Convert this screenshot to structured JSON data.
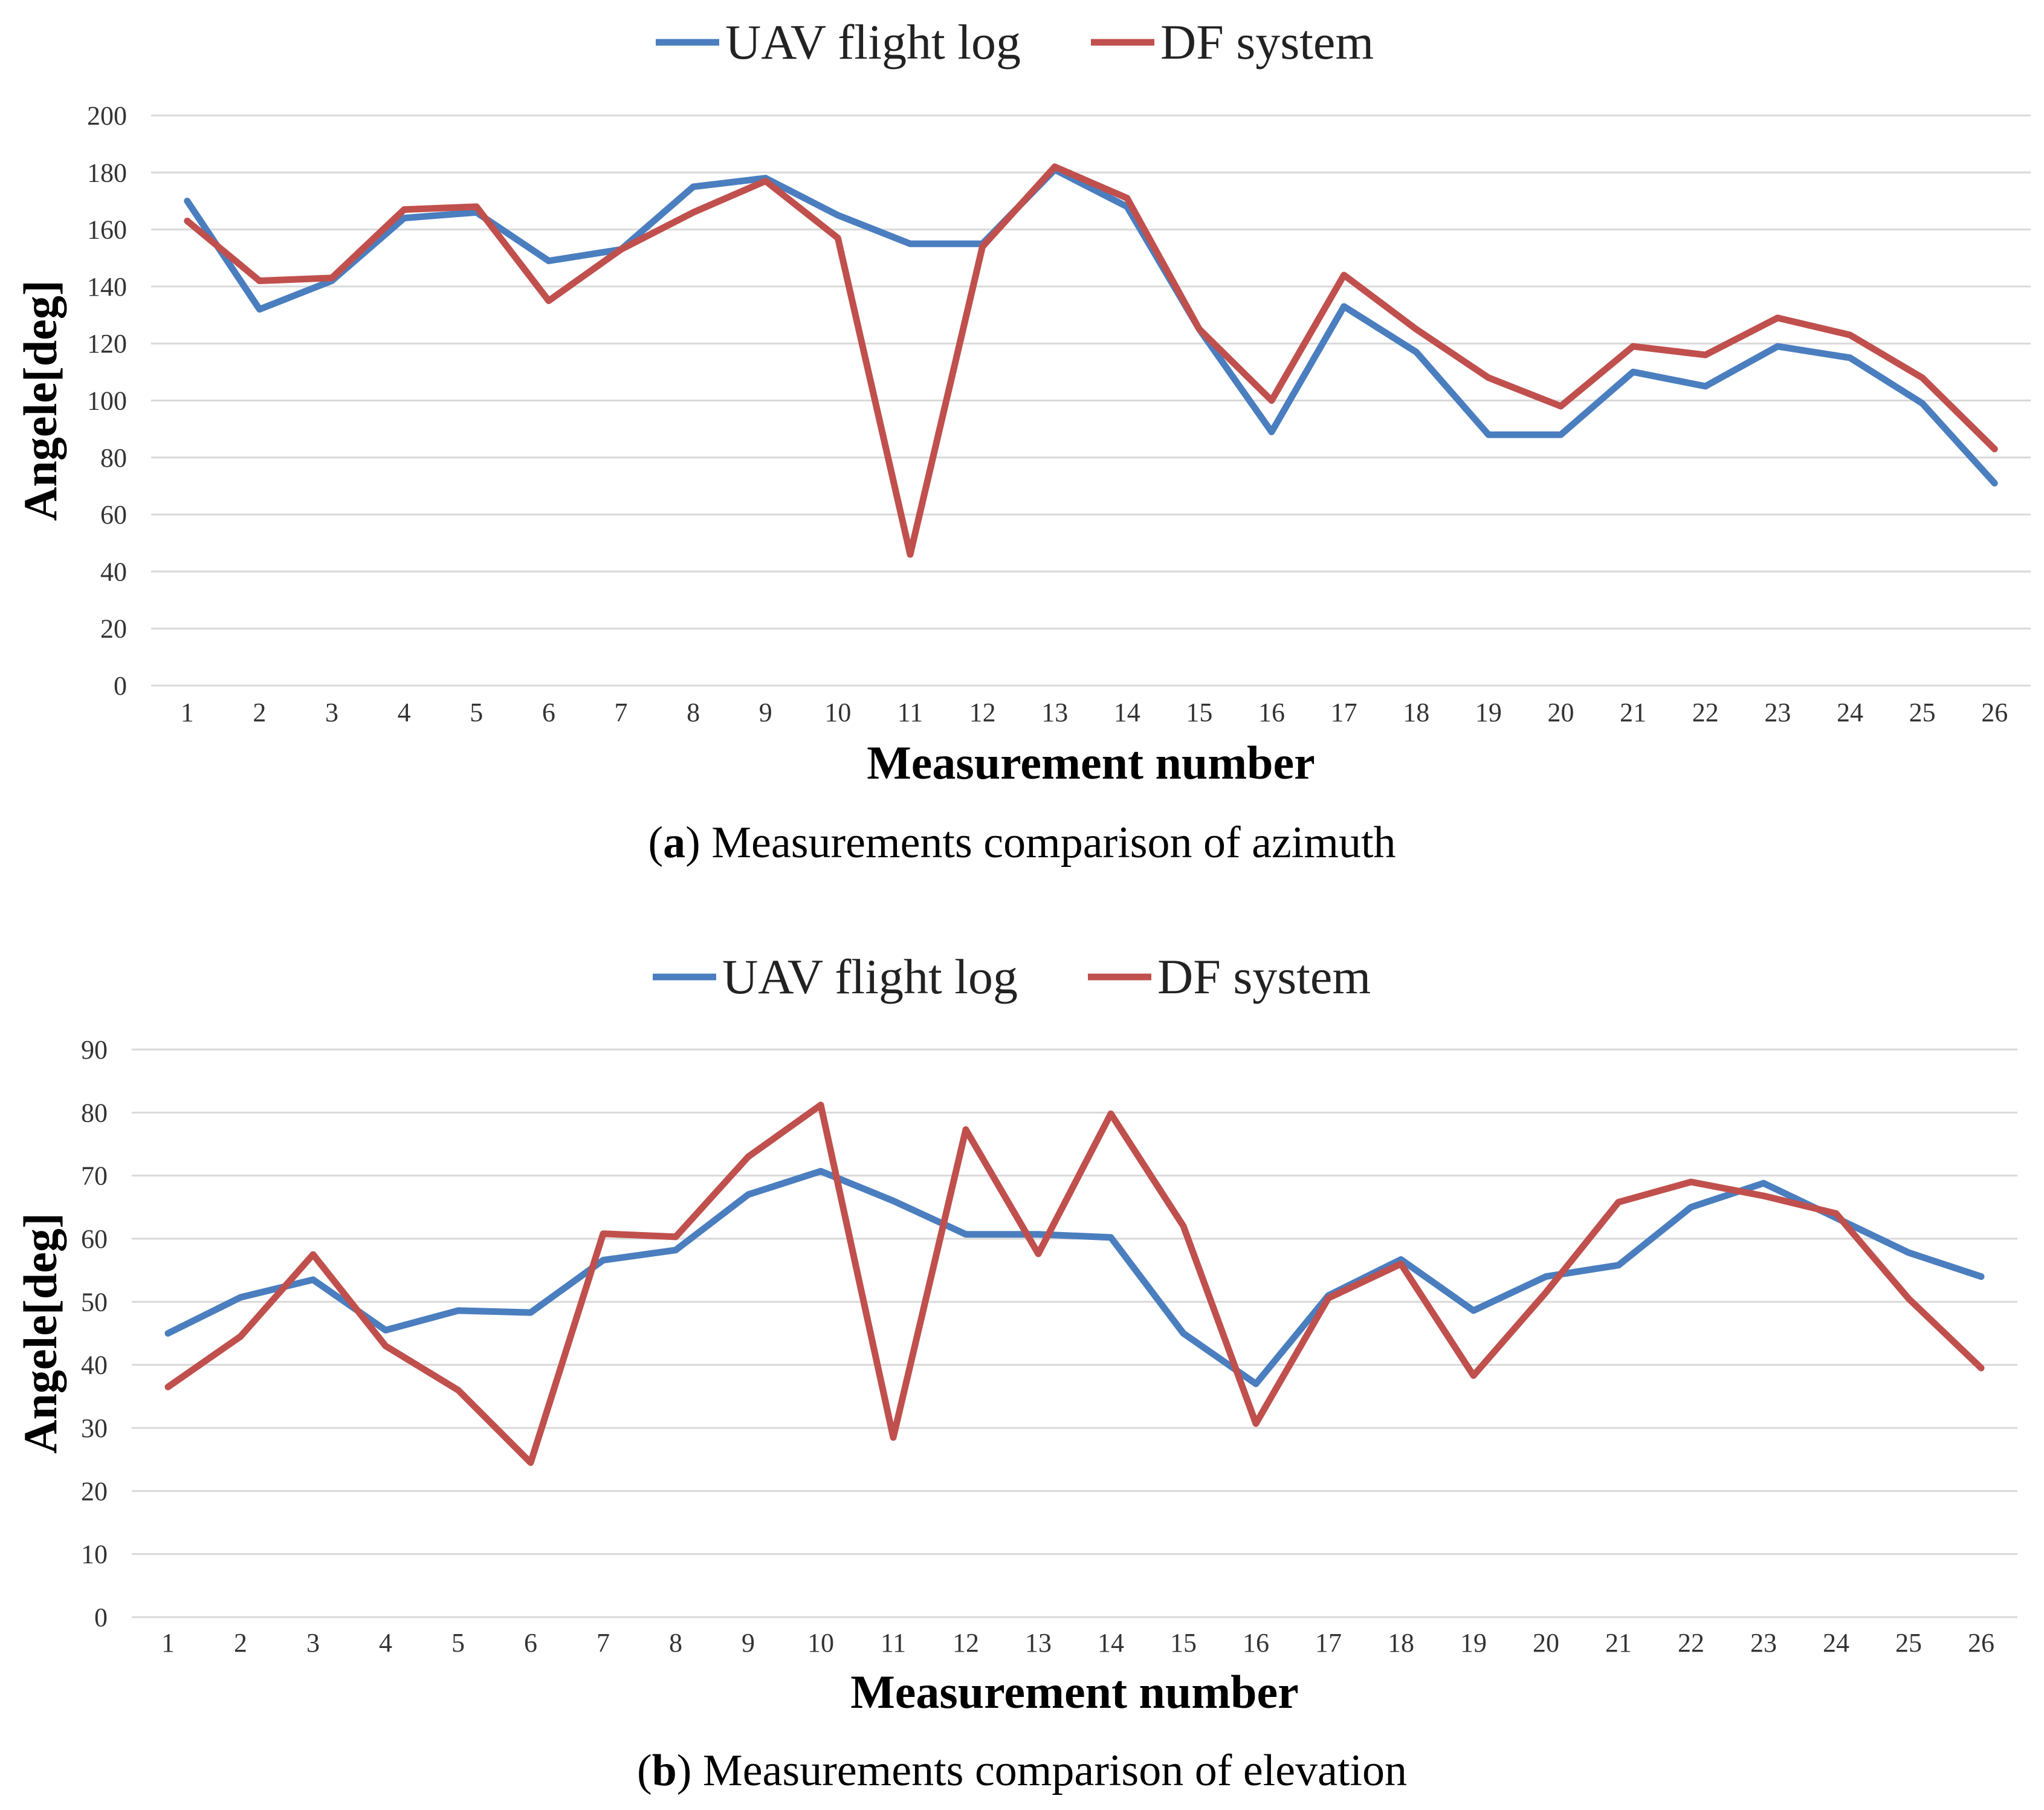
{
  "chart_data": [
    {
      "type": "line",
      "legend": [
        "UAV flight log",
        "DF system"
      ],
      "ylabel": "Angele[deg]",
      "xlabel": "Measurement number",
      "caption_label": "a",
      "caption_text": ") Measurements comparison of azimuth",
      "ylim": [
        0,
        200
      ],
      "yticks": [
        0,
        20,
        40,
        60,
        80,
        100,
        120,
        140,
        160,
        180,
        200
      ],
      "x": [
        1,
        2,
        3,
        4,
        5,
        6,
        7,
        8,
        9,
        10,
        11,
        12,
        13,
        14,
        15,
        16,
        17,
        18,
        19,
        20,
        21,
        22,
        23,
        24,
        25,
        26
      ],
      "series": [
        {
          "name": "UAV flight log",
          "color": "#4a7ebf",
          "values": [
            170,
            132,
            142,
            164,
            166,
            149,
            153,
            175,
            178,
            165,
            155,
            155,
            181,
            168,
            125,
            89,
            133,
            117,
            88,
            88,
            110,
            105,
            119,
            115,
            99,
            71
          ]
        },
        {
          "name": "DF system",
          "color": "#c0504d",
          "values": [
            163,
            142,
            143,
            167,
            168,
            135,
            153,
            166,
            177,
            157,
            46,
            154,
            182,
            171,
            125,
            100,
            144,
            125,
            108,
            98,
            119,
            116,
            129,
            123,
            108,
            83
          ]
        }
      ]
    },
    {
      "type": "line",
      "legend": [
        "UAV flight log",
        "DF system"
      ],
      "ylabel": "Angele[deg]",
      "xlabel": "Measurement number",
      "caption_label": "b",
      "caption_text": ") Measurements comparison of elevation",
      "ylim": [
        0,
        90
      ],
      "yticks": [
        0,
        10,
        20,
        30,
        40,
        50,
        60,
        70,
        80,
        90
      ],
      "x": [
        1,
        2,
        3,
        4,
        5,
        6,
        7,
        8,
        9,
        10,
        11,
        12,
        13,
        14,
        15,
        16,
        17,
        18,
        19,
        20,
        21,
        22,
        23,
        24,
        25,
        26
      ],
      "series": [
        {
          "name": "UAV flight log",
          "color": "#4a7ebf",
          "values": [
            45,
            50.7,
            53.5,
            45.5,
            48.6,
            48.3,
            56.6,
            58.2,
            67,
            70.7,
            66,
            60.7,
            60.7,
            60.2,
            45,
            37,
            51,
            56.7,
            48.6,
            54,
            55.8,
            65,
            68.8,
            63.3,
            57.8,
            54
          ]
        },
        {
          "name": "DF system",
          "color": "#c0504d",
          "values": [
            36.5,
            44.5,
            57.5,
            43,
            36,
            24.5,
            60.8,
            60.3,
            73,
            81.2,
            28.5,
            77.3,
            57.6,
            79.8,
            62,
            30.7,
            50.6,
            56,
            38.3,
            51.5,
            65.8,
            69,
            66.8,
            64,
            50.5,
            39.5
          ]
        }
      ]
    }
  ]
}
